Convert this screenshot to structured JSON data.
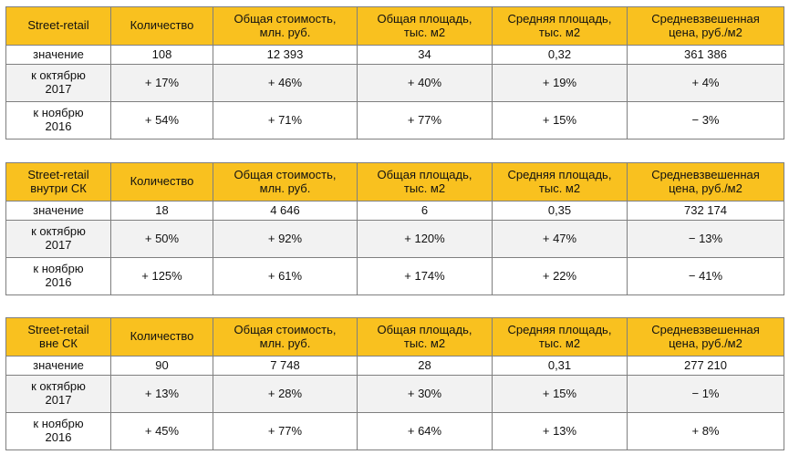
{
  "tables": [
    {
      "headers": [
        "Street-retail",
        "Количество",
        "Общая стоимость,\nмлн.  руб.",
        "Общая площадь,\nтыс. м2",
        "Средняя площадь,\nтыс. м2",
        "Средневзвешенная\nцена, руб./м2"
      ],
      "rows": [
        [
          "значение",
          "108",
          "12 393",
          "34",
          "0,32",
          "361 386"
        ],
        [
          "к октябрю\n2017",
          "+ 17%",
          "+ 46%",
          "+ 40%",
          "+ 19%",
          "+ 4%"
        ],
        [
          "к ноябрю\n2016",
          "+ 54%",
          "+ 71%",
          "+ 77%",
          "+ 15%",
          "− 3%"
        ]
      ]
    },
    {
      "headers": [
        "Street-retail\nвнутри СК",
        "Количество",
        "Общая стоимость,\nмлн.  руб.",
        "Общая площадь,\nтыс. м2",
        "Средняя площадь,\nтыс. м2",
        "Средневзвешенная\nцена, руб./м2"
      ],
      "rows": [
        [
          "значение",
          "18",
          "4 646",
          "6",
          "0,35",
          "732 174"
        ],
        [
          "к октябрю\n2017",
          "+ 50%",
          "+ 92%",
          "+ 120%",
          "+ 47%",
          "− 13%"
        ],
        [
          "к ноябрю\n2016",
          "+ 125%",
          "+ 61%",
          "+ 174%",
          "+ 22%",
          "− 41%"
        ]
      ]
    },
    {
      "headers": [
        "Street-retail\nвне СК",
        "Количество",
        "Общая стоимость,\nмлн.  руб.",
        "Общая площадь,\nтыс. м2",
        "Средняя площадь,\nтыс. м2",
        "Средневзвешенная\nцена, руб./м2"
      ],
      "rows": [
        [
          "значение",
          "90",
          "7 748",
          "28",
          "0,31",
          "277 210"
        ],
        [
          "к октябрю\n2017",
          "+ 13%",
          "+ 28%",
          "+ 30%",
          "+ 15%",
          "− 1%"
        ],
        [
          "к ноябрю\n2016",
          "+ 45%",
          "+ 77%",
          "+ 64%",
          "+ 13%",
          "+ 8%"
        ]
      ]
    }
  ],
  "colors": {
    "header_bg": "#f9c11f",
    "alt_row_bg": "#f2f2f2",
    "border": "#7f7f7f"
  }
}
